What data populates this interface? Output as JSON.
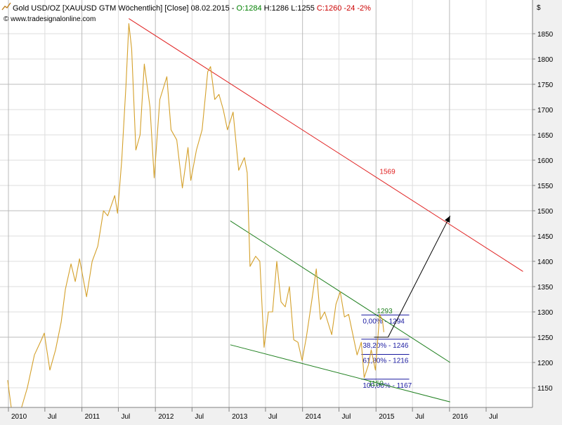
{
  "header": {
    "icon": "line-chart-icon",
    "segments": [
      {
        "text": "Gold USD/OZ [XAUUSD GTM  Wöchentlich] [Close] 08.02.2015 - ",
        "color": "#000000"
      },
      {
        "text": "O:1284",
        "color": "#008000"
      },
      {
        "text": " H:1286 L:1255 ",
        "color": "#000000"
      },
      {
        "text": "C:1260 -24 -2%",
        "color": "#cc0000"
      }
    ],
    "copyright": "© www.tradesignalonline.com"
  },
  "chart_data": {
    "type": "line",
    "title": "Gold USD/OZ [XAUUSD GTM  Wöchentlich] [Close]",
    "currency_label": "$",
    "colors": {
      "price": "#d4a02a",
      "resistance": "#e02020",
      "channel": "#208020",
      "fib": "#1a1aa0",
      "grid": "#c8c8c8",
      "plot_bg": "#ffffff"
    },
    "grid": true,
    "xlim": [
      "2010-01-01",
      "2016-12-31"
    ],
    "ylim": [
      1120,
      1900
    ],
    "y_ticks": [
      1150,
      1200,
      1250,
      1300,
      1350,
      1400,
      1450,
      1500,
      1550,
      1600,
      1650,
      1700,
      1750,
      1800,
      1850
    ],
    "x_ticks": [
      {
        "label": "2010",
        "date": "2010-01-01"
      },
      {
        "label": "Jul",
        "date": "2010-07-01"
      },
      {
        "label": "2011",
        "date": "2011-01-01"
      },
      {
        "label": "Jul",
        "date": "2011-07-01"
      },
      {
        "label": "2012",
        "date": "2012-01-01"
      },
      {
        "label": "Jul",
        "date": "2012-07-01"
      },
      {
        "label": "2013",
        "date": "2013-01-01"
      },
      {
        "label": "Jul",
        "date": "2013-07-01"
      },
      {
        "label": "2014",
        "date": "2014-01-01"
      },
      {
        "label": "Jul",
        "date": "2014-07-01"
      },
      {
        "label": "2015",
        "date": "2015-01-01"
      },
      {
        "label": "Jul",
        "date": "2015-07-01"
      },
      {
        "label": "2016",
        "date": "2016-01-01"
      },
      {
        "label": "Jul",
        "date": "2016-07-01"
      }
    ],
    "series": [
      {
        "type": "line",
        "points": [
          [
            "2009-12-28",
            1165
          ],
          [
            "2010-01-25",
            1080
          ],
          [
            "2010-02-08",
            1065
          ],
          [
            "2010-03-08",
            1112
          ],
          [
            "2010-04-05",
            1150
          ],
          [
            "2010-05-10",
            1215
          ],
          [
            "2010-06-14",
            1245
          ],
          [
            "2010-06-28",
            1258
          ],
          [
            "2010-07-26",
            1185
          ],
          [
            "2010-08-23",
            1225
          ],
          [
            "2010-09-20",
            1280
          ],
          [
            "2010-10-11",
            1345
          ],
          [
            "2010-11-08",
            1395
          ],
          [
            "2010-11-29",
            1360
          ],
          [
            "2010-12-20",
            1405
          ],
          [
            "2011-01-24",
            1330
          ],
          [
            "2011-02-21",
            1400
          ],
          [
            "2011-03-21",
            1430
          ],
          [
            "2011-04-18",
            1500
          ],
          [
            "2011-05-09",
            1490
          ],
          [
            "2011-06-13",
            1530
          ],
          [
            "2011-06-27",
            1495
          ],
          [
            "2011-07-18",
            1600
          ],
          [
            "2011-08-08",
            1750
          ],
          [
            "2011-08-22",
            1870
          ],
          [
            "2011-09-05",
            1820
          ],
          [
            "2011-09-26",
            1620
          ],
          [
            "2011-10-17",
            1650
          ],
          [
            "2011-11-07",
            1790
          ],
          [
            "2011-12-05",
            1705
          ],
          [
            "2011-12-26",
            1565
          ],
          [
            "2012-01-23",
            1720
          ],
          [
            "2012-02-27",
            1765
          ],
          [
            "2012-03-19",
            1660
          ],
          [
            "2012-04-16",
            1640
          ],
          [
            "2012-05-14",
            1545
          ],
          [
            "2012-06-11",
            1625
          ],
          [
            "2012-06-25",
            1560
          ],
          [
            "2012-07-23",
            1620
          ],
          [
            "2012-08-20",
            1660
          ],
          [
            "2012-09-17",
            1775
          ],
          [
            "2012-10-01",
            1785
          ],
          [
            "2012-10-22",
            1720
          ],
          [
            "2012-11-12",
            1730
          ],
          [
            "2012-12-03",
            1700
          ],
          [
            "2012-12-24",
            1660
          ],
          [
            "2013-01-21",
            1695
          ],
          [
            "2013-02-18",
            1580
          ],
          [
            "2013-03-18",
            1605
          ],
          [
            "2013-04-01",
            1575
          ],
          [
            "2013-04-15",
            1390
          ],
          [
            "2013-05-13",
            1410
          ],
          [
            "2013-06-03",
            1400
          ],
          [
            "2013-06-24",
            1230
          ],
          [
            "2013-07-15",
            1300
          ],
          [
            "2013-08-05",
            1300
          ],
          [
            "2013-08-26",
            1400
          ],
          [
            "2013-09-16",
            1320
          ],
          [
            "2013-10-07",
            1310
          ],
          [
            "2013-10-28",
            1350
          ],
          [
            "2013-11-18",
            1245
          ],
          [
            "2013-12-09",
            1240
          ],
          [
            "2013-12-30",
            1204
          ],
          [
            "2014-01-20",
            1250
          ],
          [
            "2014-02-17",
            1325
          ],
          [
            "2014-03-10",
            1385
          ],
          [
            "2014-03-31",
            1285
          ],
          [
            "2014-04-21",
            1300
          ],
          [
            "2014-05-26",
            1255
          ],
          [
            "2014-06-16",
            1315
          ],
          [
            "2014-07-07",
            1340
          ],
          [
            "2014-07-28",
            1290
          ],
          [
            "2014-08-18",
            1295
          ],
          [
            "2014-09-08",
            1255
          ],
          [
            "2014-09-29",
            1215
          ],
          [
            "2014-10-20",
            1240
          ],
          [
            "2014-11-03",
            1170
          ],
          [
            "2014-11-24",
            1195
          ],
          [
            "2014-12-08",
            1225
          ],
          [
            "2014-12-29",
            1185
          ],
          [
            "2015-01-19",
            1295
          ],
          [
            "2015-02-02",
            1284
          ],
          [
            "2015-02-09",
            1260
          ]
        ]
      }
    ],
    "lines": [
      {
        "name": "resistance",
        "from": [
          "2011-08-22",
          1880
        ],
        "to": [
          "2016-12-31",
          1380
        ],
        "label": "1569",
        "label_at": [
          "2015-01-19",
          1569
        ]
      },
      {
        "name": "channel-upper",
        "from": [
          "2013-01-07",
          1480
        ],
        "to": [
          "2016-01-04",
          1200
        ],
        "label": "1293",
        "label_at": [
          "2015-01-05",
          1293
        ]
      },
      {
        "name": "channel-lower",
        "from": [
          "2013-01-07",
          1235
        ],
        "to": [
          "2016-01-04",
          1122
        ],
        "label": "1150",
        "label_at": [
          "2014-11-24",
          1150
        ]
      }
    ],
    "fibonacci": {
      "x_range": [
        "2014-10-20",
        "2015-06-15"
      ],
      "levels": [
        {
          "label": "0,00% - 1294",
          "value": 1294
        },
        {
          "label": "38,20% - 1246",
          "value": 1246
        },
        {
          "label": "61,80% - 1216",
          "value": 1216
        },
        {
          "label": "100,00% - 1167",
          "value": 1167
        }
      ]
    },
    "arrow": {
      "from": [
        "2015-03-02",
        1250
      ],
      "to": [
        "2016-01-04",
        1490
      ]
    }
  }
}
